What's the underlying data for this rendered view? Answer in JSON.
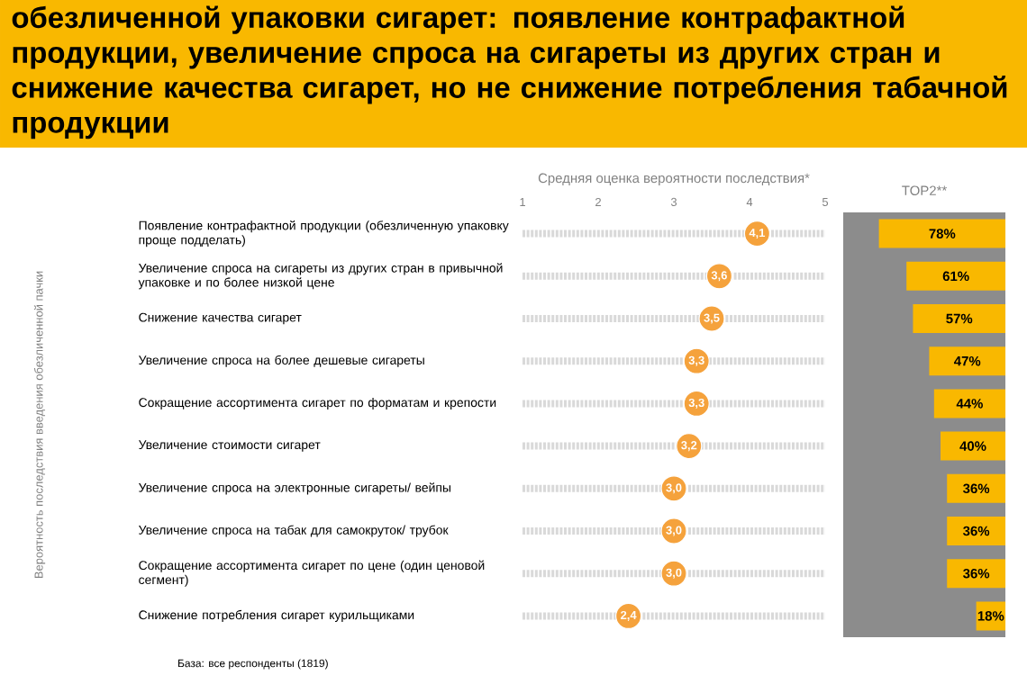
{
  "chart_data": [
    {
      "type": "scatter",
      "title": "обезличенной упаковки сигарет: появление контрафактной продукции, увеличение спроса на сигареты из других стран и снижение качества сигарет, но не снижение потребления табачной продукции",
      "xlabel": "Средняя оценка вероятности последствия*",
      "categories": [
        "Появление контрафактной продукции (обезличенную упаковку проще подделать)",
        "Увеличение спроса на сигареты из других стран в привычной упаковке и по более низкой цене",
        "Снижение качества сигарет",
        "Увеличение спроса на более дешевые сигареты",
        "Сокращение ассортимента сигарет по форматам и крепости",
        "Увеличение стоимости сигарет",
        "Увеличение спроса на электронные сигареты/ вейпы",
        "Увеличение спроса на табак для самокруток/ трубок",
        "Сокращение ассортимента сигарет по цене (один ценовой сегмент)",
        "Снижение потребления сигарет курильщиками"
      ],
      "values": [
        4.1,
        3.6,
        3.5,
        3.3,
        3.3,
        3.2,
        3.0,
        3.0,
        3.0,
        2.4
      ],
      "value_labels": [
        "4,1",
        "3,6",
        "3,5",
        "3,3",
        "3,3",
        "3,2",
        "3,0",
        "3,0",
        "3,0",
        "2,4"
      ],
      "color": "#f5a23c",
      "marker": "circle",
      "grid": "y",
      "orientation": "horizontal",
      "xlim": [
        1,
        5
      ],
      "xticks": [
        1,
        2,
        3,
        4,
        5
      ],
      "annotations": [
        "Вероятность последствия введения обезличенной пачки",
        "База: все респонденты (1819)"
      ]
    },
    {
      "type": "bar",
      "orientation": "horizontal",
      "title": "TOP2**",
      "categories": [
        null,
        null,
        null,
        null,
        null,
        null,
        null,
        null,
        null,
        null
      ],
      "color": "#f9b800",
      "values": [
        78,
        61,
        57,
        47,
        44,
        40,
        36,
        36,
        36,
        18
      ],
      "value_labels": [
        "78%",
        "61%",
        "57%",
        "47%",
        "44%",
        "40%",
        "36%",
        "36%",
        "36%",
        "18%"
      ],
      "xlim": [
        100,
        0
      ]
    }
  ]
}
